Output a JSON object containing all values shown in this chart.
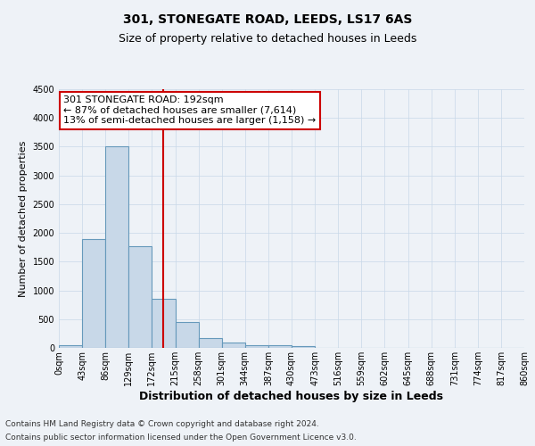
{
  "title": "301, STONEGATE ROAD, LEEDS, LS17 6AS",
  "subtitle": "Size of property relative to detached houses in Leeds",
  "xlabel": "Distribution of detached houses by size in Leeds",
  "ylabel": "Number of detached properties",
  "bin_edges": [
    0,
    43,
    86,
    129,
    172,
    215,
    258,
    301,
    344,
    387,
    430,
    473,
    516,
    559,
    602,
    645,
    688,
    731,
    774,
    817,
    860
  ],
  "bar_heights": [
    50,
    1900,
    3500,
    1775,
    850,
    450,
    175,
    100,
    50,
    40,
    35,
    0,
    0,
    0,
    0,
    0,
    0,
    0,
    0,
    0
  ],
  "bar_color": "#c8d8e8",
  "bar_edge_color": "#6699bb",
  "bar_linewidth": 0.8,
  "vline_x": 192,
  "vline_color": "#cc0000",
  "vline_linewidth": 1.5,
  "annotation_title": "301 STONEGATE ROAD: 192sqm",
  "annotation_line1": "← 87% of detached houses are smaller (7,614)",
  "annotation_line2": "13% of semi-detached houses are larger (1,158) →",
  "annotation_box_facecolor": "#ffffff",
  "annotation_box_edgecolor": "#cc0000",
  "ylim": [
    0,
    4500
  ],
  "yticks": [
    0,
    500,
    1000,
    1500,
    2000,
    2500,
    3000,
    3500,
    4000,
    4500
  ],
  "xtick_labels": [
    "0sqm",
    "43sqm",
    "86sqm",
    "129sqm",
    "172sqm",
    "215sqm",
    "258sqm",
    "301sqm",
    "344sqm",
    "387sqm",
    "430sqm",
    "473sqm",
    "516sqm",
    "559sqm",
    "602sqm",
    "645sqm",
    "688sqm",
    "731sqm",
    "774sqm",
    "817sqm",
    "860sqm"
  ],
  "grid_color": "#c8d8e8",
  "grid_linewidth": 0.5,
  "background_color": "#eef2f7",
  "footer_line1": "Contains HM Land Registry data © Crown copyright and database right 2024.",
  "footer_line2": "Contains public sector information licensed under the Open Government Licence v3.0.",
  "title_fontsize": 10,
  "subtitle_fontsize": 9,
  "xlabel_fontsize": 9,
  "ylabel_fontsize": 8,
  "tick_fontsize": 7,
  "annotation_fontsize": 8,
  "footer_fontsize": 6.5
}
